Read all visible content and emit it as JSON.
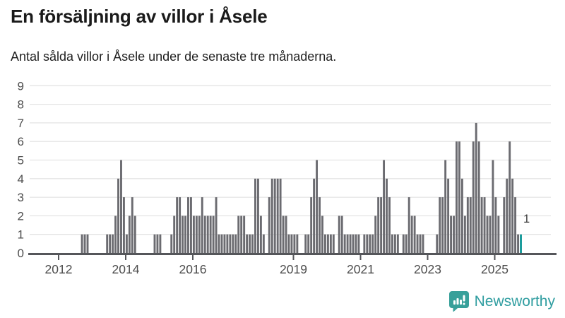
{
  "header": {
    "title": "En försäljning av villor i Åsele",
    "subtitle": "Antal sålda villor i Åsele under de senaste tre månaderna."
  },
  "chart_data": {
    "type": "bar",
    "title": "En försäljning av villor i Åsele",
    "subtitle": "Antal sålda villor i Åsele under de senaste tre månaderna.",
    "start_month": "2012-09",
    "end_month": "2025-10",
    "values": [
      1,
      1,
      1,
      0,
      0,
      0,
      0,
      0,
      0,
      1,
      1,
      1,
      2,
      4,
      5,
      3,
      1,
      2,
      3,
      2,
      0,
      0,
      0,
      0,
      0,
      0,
      1,
      1,
      1,
      0,
      0,
      0,
      1,
      2,
      3,
      3,
      2,
      2,
      3,
      3,
      2,
      2,
      2,
      3,
      2,
      2,
      2,
      2,
      3,
      1,
      1,
      1,
      1,
      1,
      1,
      1,
      2,
      2,
      2,
      1,
      1,
      1,
      4,
      4,
      2,
      1,
      0,
      3,
      4,
      4,
      4,
      4,
      2,
      2,
      1,
      1,
      1,
      1,
      0,
      0,
      1,
      1,
      3,
      4,
      5,
      3,
      2,
      1,
      1,
      1,
      1,
      0,
      2,
      2,
      1,
      1,
      1,
      1,
      1,
      1,
      0,
      1,
      1,
      1,
      1,
      2,
      3,
      3,
      5,
      4,
      3,
      1,
      1,
      1,
      0,
      1,
      1,
      3,
      2,
      2,
      1,
      1,
      1,
      0,
      0,
      0,
      0,
      1,
      3,
      3,
      5,
      4,
      2,
      2,
      6,
      6,
      4,
      2,
      3,
      3,
      6,
      7,
      6,
      3,
      3,
      2,
      2,
      5,
      3,
      2,
      0,
      3,
      4,
      6,
      4,
      3,
      1,
      1
    ],
    "highlight": {
      "index": 157,
      "value": 1,
      "label": "1",
      "color": "#16999a"
    },
    "ylim": [
      0,
      9
    ],
    "yticks": [
      0,
      1,
      2,
      3,
      4,
      5,
      6,
      7,
      8,
      9
    ],
    "xticks": [
      2012,
      2014,
      2016,
      2019,
      2021,
      2023,
      2025
    ],
    "bar_color": "#6b6b70",
    "grid": true,
    "legend": "none",
    "xlabel": "",
    "ylabel": ""
  },
  "footer": {
    "brand": "Newsworthy",
    "logo_icon": "newsworthy-speech-bubble-bar-chart"
  },
  "colors": {
    "accent_teal": "#16999a",
    "bar_gray": "#6b6b70",
    "brand_teal": "#2f9da0",
    "axis_line": "#55565a",
    "gridline": "#e4e4e4",
    "tick_label": "#4d4d4d"
  }
}
